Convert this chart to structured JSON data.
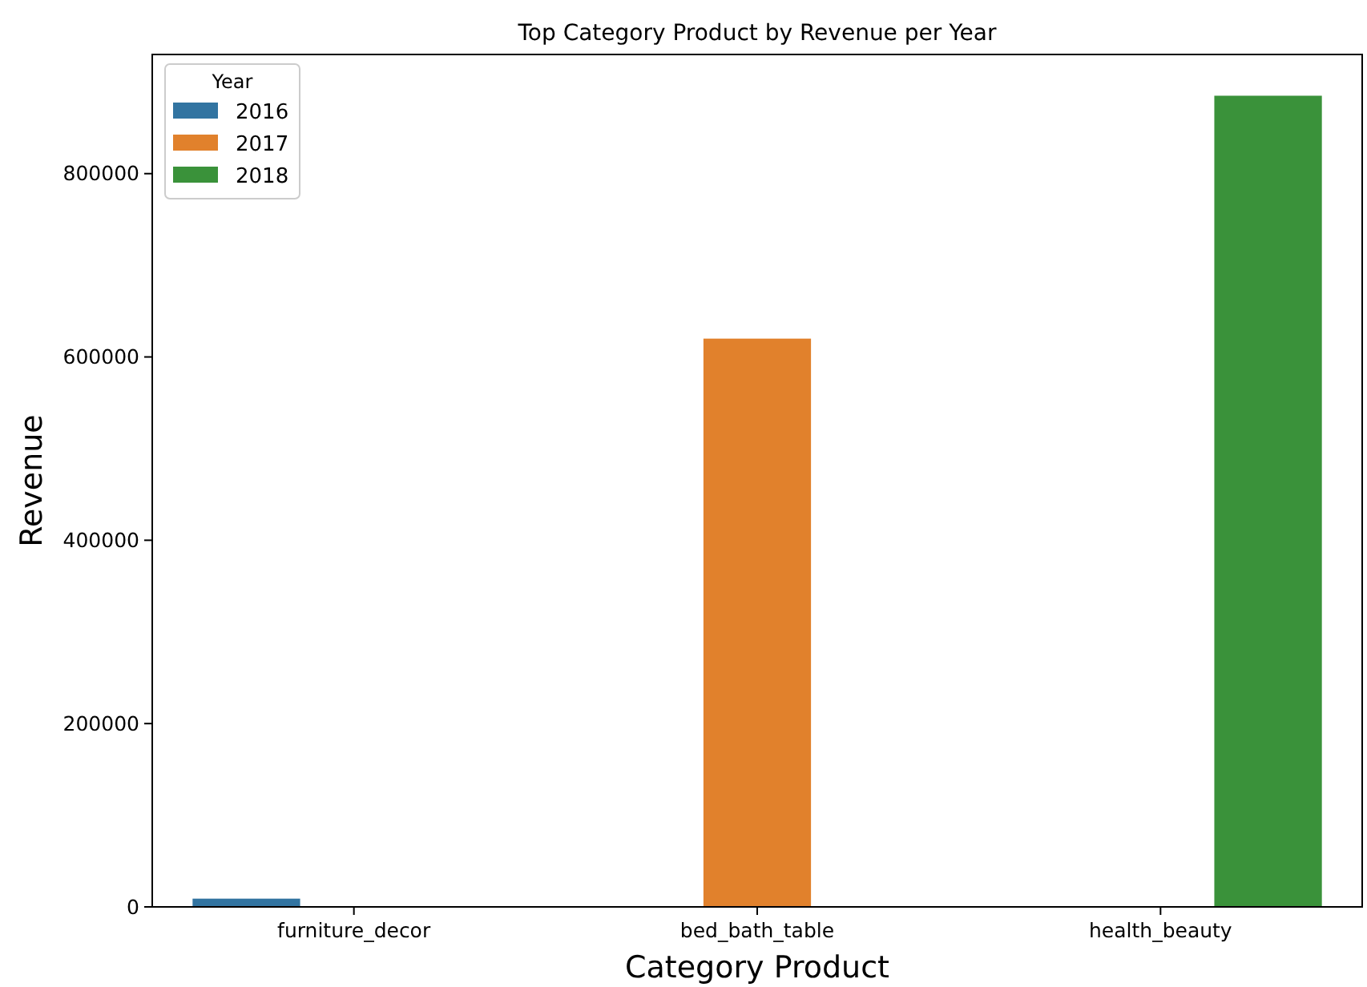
{
  "chart_data": {
    "type": "bar",
    "title": "Top Category Product by Revenue per Year",
    "xlabel": "Category Product",
    "ylabel": "Revenue",
    "legend_title": "Year",
    "categories": [
      "furniture_decor",
      "bed_bath_table",
      "health_beauty"
    ],
    "series": [
      {
        "name": "2016",
        "color": "#3274a1",
        "values": [
          9000,
          null,
          null
        ]
      },
      {
        "name": "2017",
        "color": "#e1812c",
        "values": [
          null,
          620000,
          null
        ]
      },
      {
        "name": "2018",
        "color": "#3a923a",
        "values": [
          null,
          null,
          885000
        ]
      }
    ],
    "ylim": [
      0,
      930000
    ],
    "yticks": [
      0,
      200000,
      400000,
      600000,
      800000
    ],
    "legend": "top left",
    "grid": false
  }
}
